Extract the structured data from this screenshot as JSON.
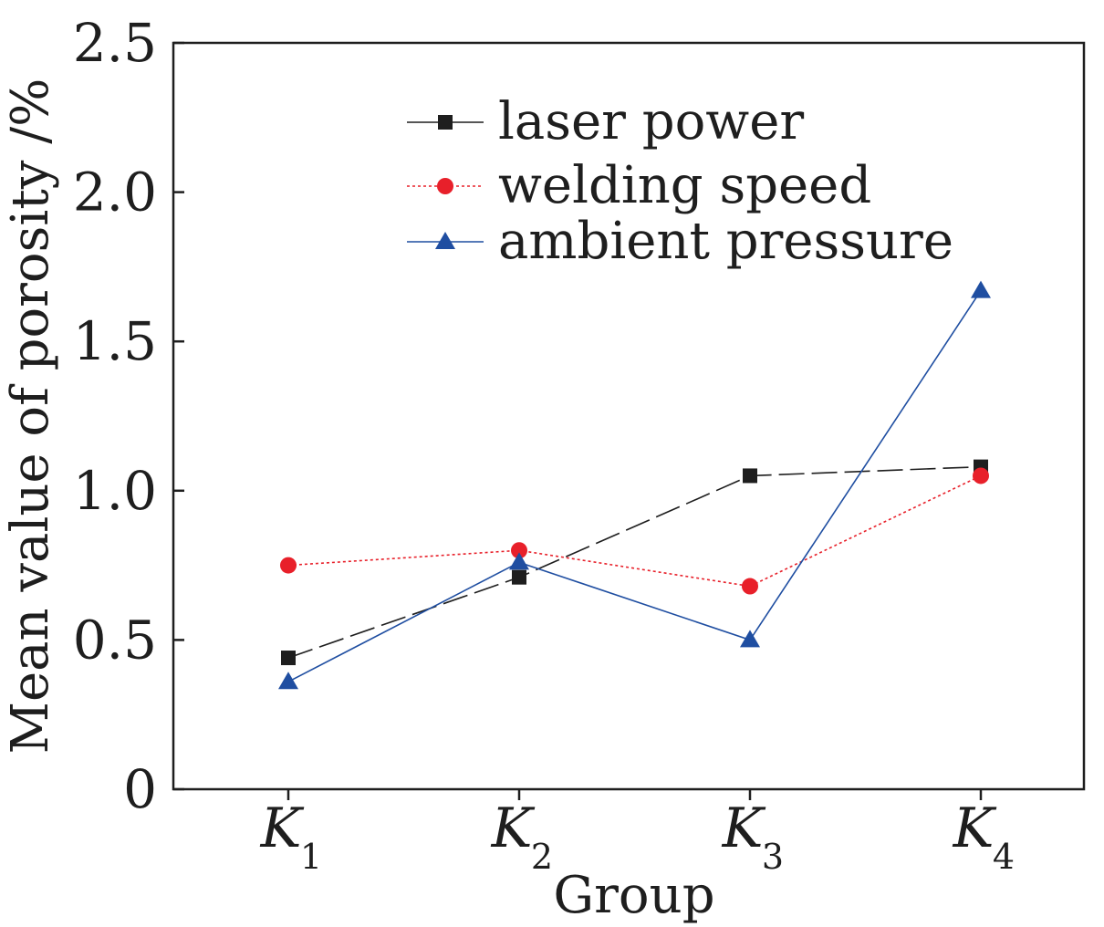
{
  "chart_data": {
    "type": "line",
    "title": "",
    "xlabel": "Group",
    "ylabel": "Mean value of porosity /%",
    "ylim": [
      0,
      2.5
    ],
    "yticks": [
      "0",
      "0.5",
      "1.0",
      "1.5",
      "2.0",
      "2.5"
    ],
    "categories": [
      {
        "main": "K",
        "sub": "1"
      },
      {
        "main": "K",
        "sub": "2"
      },
      {
        "main": "K",
        "sub": "3"
      },
      {
        "main": "K",
        "sub": "4"
      }
    ],
    "grid": false,
    "legend_position": "top-center",
    "series": [
      {
        "name": "laser power",
        "color": "#1e1e1e",
        "marker": "square",
        "dash": "long-dash",
        "values": [
          0.44,
          0.71,
          1.05,
          1.08
        ]
      },
      {
        "name": "welding speed",
        "color": "#e8202a",
        "marker": "circle",
        "dash": "dotted",
        "values": [
          0.75,
          0.8,
          0.68,
          1.05
        ]
      },
      {
        "name": "ambient pressure",
        "color": "#1f4ea1",
        "marker": "triangle",
        "dash": "solid",
        "values": [
          0.36,
          0.76,
          0.5,
          1.67
        ]
      }
    ]
  }
}
